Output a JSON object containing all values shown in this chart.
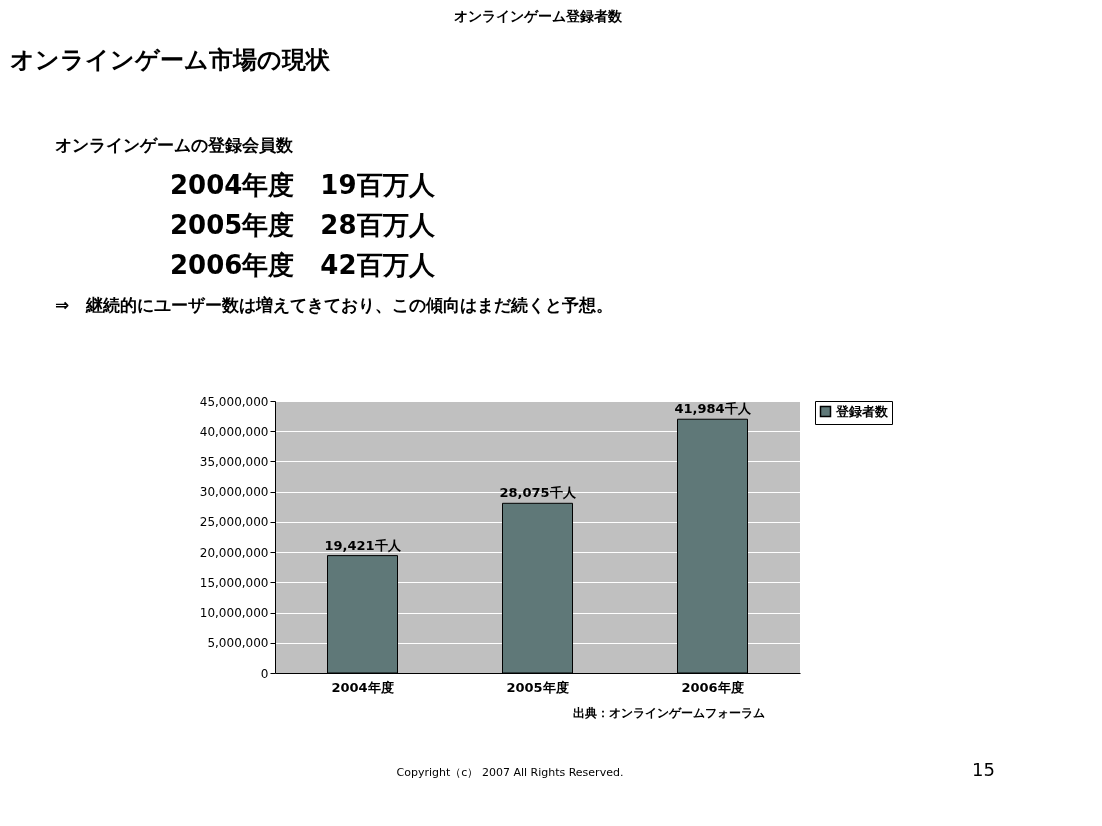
{
  "chart_data": {
    "type": "bar",
    "title": "オンラインゲーム登録者数",
    "categories": [
      "2004年度",
      "2005年度",
      "2006年度"
    ],
    "series": [
      {
        "name": "登録者数",
        "color": "#5f7878",
        "values": [
          19421000,
          28075000,
          41984000
        ]
      }
    ],
    "value_labels": [
      "19,421千人",
      "28,075千人",
      "41,984千人"
    ],
    "ylim": [
      0,
      45000000
    ],
    "yticks": [
      {
        "value": 0,
        "label": "0"
      },
      {
        "value": 5000000,
        "label": "5,000,000"
      },
      {
        "value": 10000000,
        "label": "10,000,000"
      },
      {
        "value": 15000000,
        "label": "15,000,000"
      },
      {
        "value": 20000000,
        "label": "20,000,000"
      },
      {
        "value": 25000000,
        "label": "25,000,000"
      },
      {
        "value": 30000000,
        "label": "30,000,000"
      },
      {
        "value": 35000000,
        "label": "35,000,000"
      },
      {
        "value": 40000000,
        "label": "40,000,000"
      },
      {
        "value": 45000000,
        "label": "45,000,000"
      }
    ],
    "grid": "y",
    "legend": "right",
    "annotations": [
      "オンラインゲーム市場の現状",
      "オンラインゲームの登録会員数",
      "2004年度　19百万人",
      "2005年度　28百万人",
      "2006年度　42百万人",
      "⇒　継続的にユーザー数は増えてきており、この傾向はまだ続くと予想。",
      "出典：オンラインゲームフォーラム",
      "Copyright（c） 2007 All Rights Reserved.",
      "15"
    ]
  }
}
